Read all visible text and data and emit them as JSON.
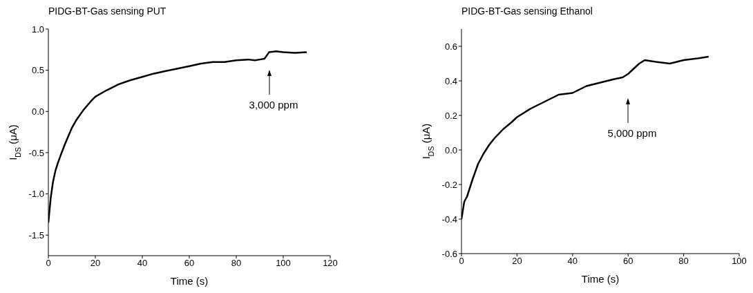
{
  "chart_data": [
    {
      "type": "line",
      "title": "PIDG-BT-Gas sensing PUT",
      "xlabel": "Time (s)",
      "ylabel": "I$_{DS}$ (μA)",
      "xlim": [
        0,
        120
      ],
      "ylim": [
        -1.75,
        1.0
      ],
      "xticks": [
        0,
        20,
        40,
        60,
        80,
        100,
        120
      ],
      "yticks": [
        -1.5,
        {
          "value": -1,
          "label": "-1.0"
        },
        -0.5,
        {
          "value": 0,
          "label": "0.0"
        },
        0.5,
        {
          "value": 1,
          "label": "1.0"
        }
      ],
      "series": [
        {
          "color": "#000000",
          "x": [
            0,
            0.5,
            1,
            2,
            3,
            4,
            5,
            7,
            10,
            12,
            15,
            18,
            20,
            25,
            30,
            35,
            40,
            45,
            50,
            55,
            60,
            65,
            70,
            75,
            80,
            85,
            88,
            90,
            92,
            93,
            94,
            97,
            100,
            105,
            110
          ],
          "values": [
            -1.35,
            -1.2,
            -1.05,
            -0.85,
            -0.72,
            -0.63,
            -0.55,
            -0.4,
            -0.2,
            -0.1,
            0.02,
            0.12,
            0.18,
            0.26,
            0.33,
            0.38,
            0.42,
            0.46,
            0.49,
            0.52,
            0.55,
            0.58,
            0.6,
            0.6,
            0.62,
            0.63,
            0.62,
            0.63,
            0.64,
            0.68,
            0.72,
            0.73,
            0.72,
            0.71,
            0.72
          ]
        }
      ],
      "annotations": [
        "3,000 ppm"
      ]
    },
    {
      "type": "line",
      "title": "PIDG-BT-Gas sensing Ethanol",
      "xlabel": "Time (s)",
      "ylabel": "I$_{DS}$ (μA)",
      "xlim": [
        0,
        100
      ],
      "ylim": [
        -0.6,
        0.7
      ],
      "xticks": [
        0,
        20,
        40,
        60,
        80,
        100
      ],
      "yticks": [
        -0.6,
        -0.4,
        -0.2,
        {
          "value": 0,
          "label": "0.0"
        },
        0.2,
        0.4,
        0.6
      ],
      "series": [
        {
          "color": "#000000",
          "x": [
            0,
            1,
            2,
            4,
            6,
            8,
            10,
            12,
            15,
            18,
            20,
            25,
            30,
            35,
            40,
            45,
            50,
            55,
            58,
            60,
            62,
            64,
            66,
            70,
            75,
            80,
            85,
            89
          ],
          "values": [
            -0.4,
            -0.3,
            -0.27,
            -0.17,
            -0.08,
            -0.02,
            0.03,
            0.07,
            0.12,
            0.16,
            0.19,
            0.24,
            0.28,
            0.32,
            0.33,
            0.37,
            0.39,
            0.41,
            0.42,
            0.44,
            0.47,
            0.5,
            0.52,
            0.51,
            0.5,
            0.52,
            0.53,
            0.54
          ]
        }
      ],
      "annotations": [
        "5,000 ppm"
      ]
    }
  ]
}
